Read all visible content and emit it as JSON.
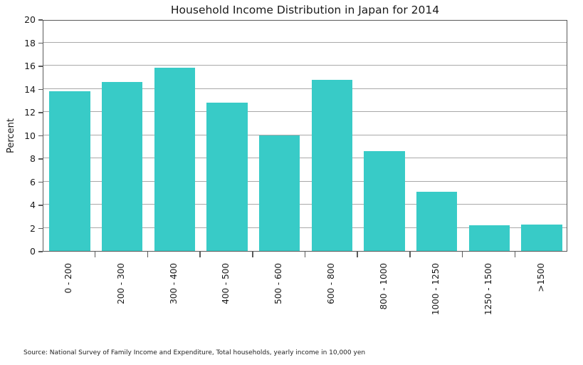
{
  "title": "Household Income Distribution in Japan for 2014",
  "source_note": "Source: National Survey of Family Income and Expenditure, Total households, yearly income in 10,000 yen",
  "chart_data": {
    "type": "bar",
    "title": "Household Income Distribution in Japan for 2014",
    "xlabel": "",
    "ylabel": "Percent",
    "categories": [
      "0 - 200",
      "200 - 300",
      "300 - 400",
      "400 - 500",
      "500 - 600",
      "600 - 800",
      "800 - 1000",
      "1000 - 1250",
      "1250 - 1500",
      ">1500"
    ],
    "values": [
      13.8,
      14.6,
      15.8,
      12.8,
      10.0,
      14.8,
      8.6,
      5.1,
      2.2,
      2.3
    ],
    "ylim": [
      0,
      20
    ],
    "ytick_step": 2,
    "grid": "horizontal",
    "legend": "none",
    "annotation": "Source: National Survey of Family Income and Expenditure, Total households, yearly income in 10,000 yen",
    "colors": {
      "bar_fill": "#38cbc7",
      "gridline": "#a9a9a9",
      "spine": "#5a5a5a",
      "text": "#1a1a1a"
    }
  }
}
